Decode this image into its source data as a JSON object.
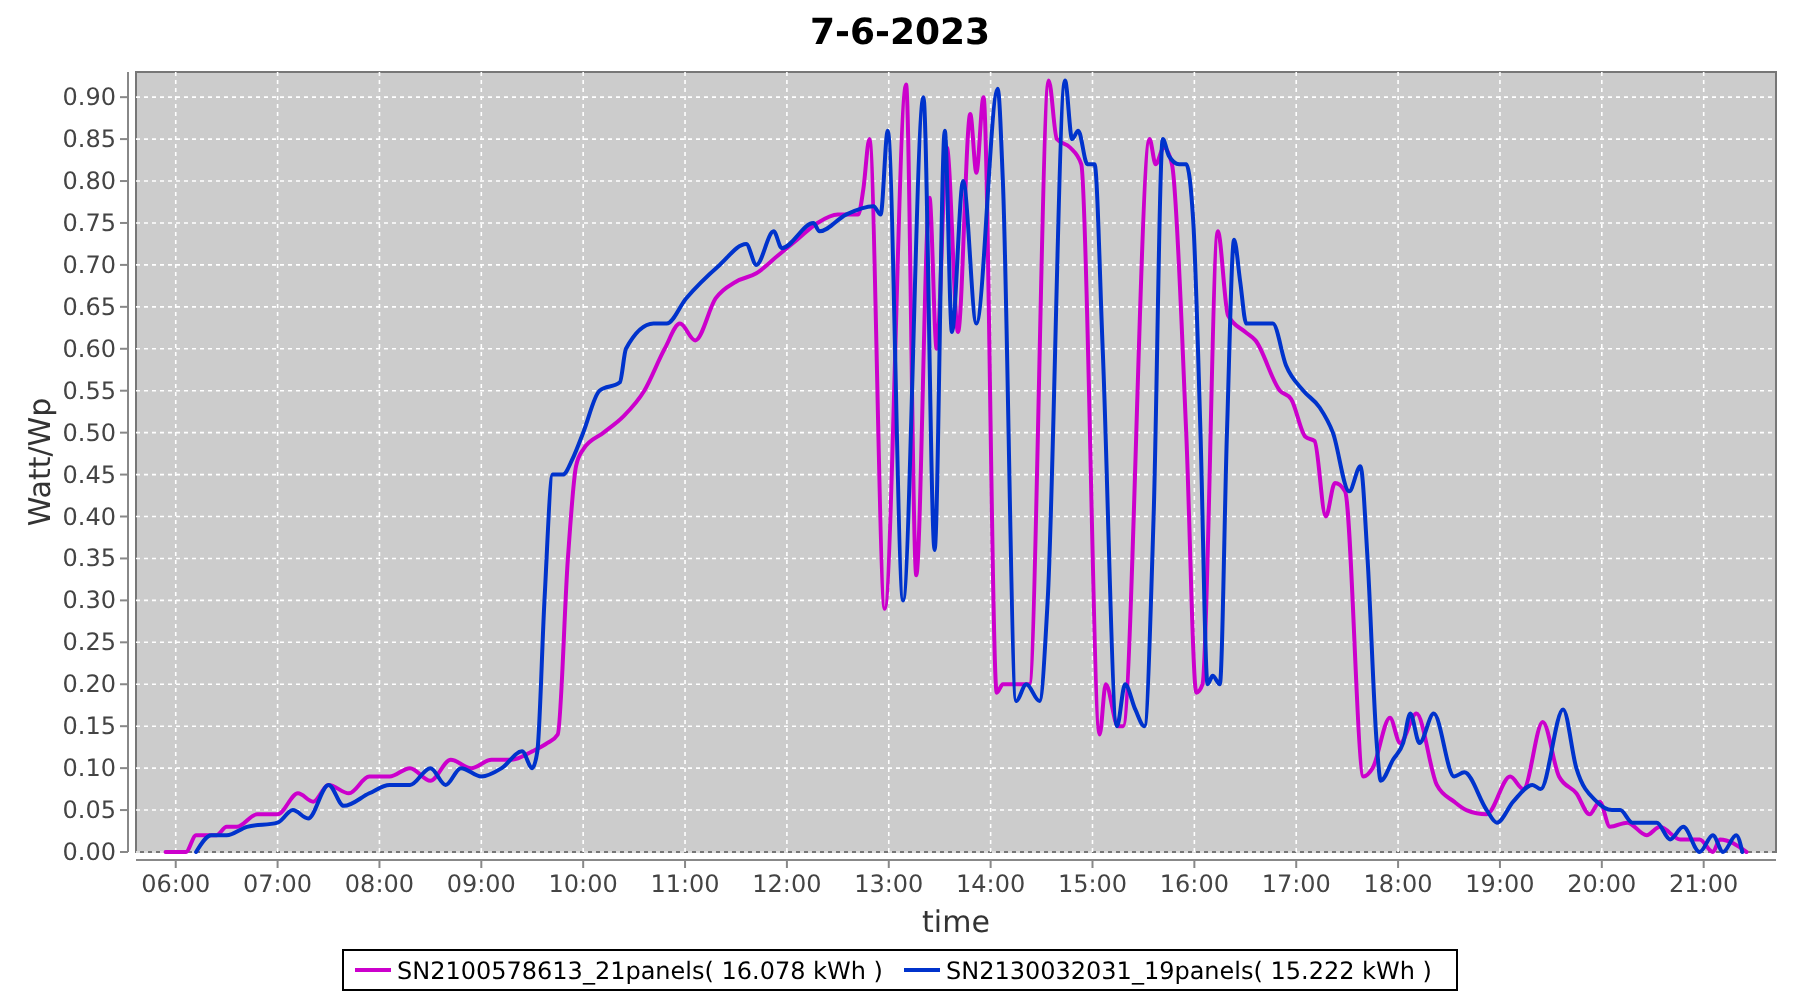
{
  "chart_data": {
    "type": "line",
    "title": "7-6-2023",
    "xlabel": "time",
    "ylabel": "Watt/Wp",
    "xlim": [
      5.61,
      21.71
    ],
    "ylim": [
      0,
      0.93
    ],
    "xticks": [
      {
        "value": 6,
        "label": "06:00"
      },
      {
        "value": 7,
        "label": "07:00"
      },
      {
        "value": 8,
        "label": "08:00"
      },
      {
        "value": 9,
        "label": "09:00"
      },
      {
        "value": 10,
        "label": "10:00"
      },
      {
        "value": 11,
        "label": "11:00"
      },
      {
        "value": 12,
        "label": "12:00"
      },
      {
        "value": 13,
        "label": "13:00"
      },
      {
        "value": 14,
        "label": "14:00"
      },
      {
        "value": 15,
        "label": "15:00"
      },
      {
        "value": 16,
        "label": "16:00"
      },
      {
        "value": 17,
        "label": "17:00"
      },
      {
        "value": 18,
        "label": "18:00"
      },
      {
        "value": 19,
        "label": "19:00"
      },
      {
        "value": 20,
        "label": "20:00"
      },
      {
        "value": 21,
        "label": "21:00"
      }
    ],
    "yticks": [
      {
        "value": 0,
        "label": "0.00"
      },
      {
        "value": 0.05,
        "label": "0.05"
      },
      {
        "value": 0.1,
        "label": "0.10"
      },
      {
        "value": 0.15,
        "label": "0.15"
      },
      {
        "value": 0.2,
        "label": "0.20"
      },
      {
        "value": 0.25,
        "label": "0.25"
      },
      {
        "value": 0.3,
        "label": "0.30"
      },
      {
        "value": 0.35,
        "label": "0.35"
      },
      {
        "value": 0.4,
        "label": "0.40"
      },
      {
        "value": 0.45,
        "label": "0.45"
      },
      {
        "value": 0.5,
        "label": "0.50"
      },
      {
        "value": 0.55,
        "label": "0.55"
      },
      {
        "value": 0.6,
        "label": "0.60"
      },
      {
        "value": 0.65,
        "label": "0.65"
      },
      {
        "value": 0.7,
        "label": "0.70"
      },
      {
        "value": 0.75,
        "label": "0.75"
      },
      {
        "value": 0.8,
        "label": "0.80"
      },
      {
        "value": 0.85,
        "label": "0.85"
      },
      {
        "value": 0.9,
        "label": "0.90"
      }
    ],
    "grid": true,
    "legend": "bottom",
    "line_style": "solid",
    "marker": "none",
    "series": [
      {
        "name": "SN2100578613_21panels( 16.078 kWh )",
        "color": "#cc00cc",
        "x": [
          5.9,
          6.1,
          6.2,
          6.4,
          6.5,
          6.6,
          6.8,
          7.0,
          7.2,
          7.35,
          7.5,
          7.7,
          7.9,
          8.1,
          8.3,
          8.5,
          8.7,
          8.9,
          9.1,
          9.3,
          9.5,
          9.65,
          9.75,
          9.85,
          9.93,
          10.0,
          10.2,
          10.4,
          10.6,
          10.8,
          10.95,
          11.1,
          11.3,
          11.5,
          11.7,
          11.9,
          12.1,
          12.3,
          12.5,
          12.7,
          12.75,
          12.81,
          12.96,
          13.17,
          13.27,
          13.4,
          13.47,
          13.57,
          13.68,
          13.8,
          13.86,
          13.93,
          14.06,
          14.12,
          14.38,
          14.57,
          14.65,
          14.78,
          14.89,
          15.07,
          15.13,
          15.25,
          15.3,
          15.56,
          15.62,
          15.7,
          15.78,
          15.92,
          16.02,
          16.08,
          16.23,
          16.33,
          16.5,
          16.6,
          16.84,
          16.95,
          17.09,
          17.18,
          17.29,
          17.38,
          17.48,
          17.66,
          17.75,
          17.92,
          18.02,
          18.18,
          18.38,
          18.55,
          18.67,
          18.87,
          19.1,
          19.23,
          19.42,
          19.58,
          19.75,
          19.88,
          19.98,
          20.08,
          20.25,
          20.44,
          20.57,
          20.77,
          20.96,
          21.09,
          21.16,
          21.42
        ],
        "values": [
          0,
          0,
          0.02,
          0.02,
          0.03,
          0.03,
          0.045,
          0.045,
          0.07,
          0.06,
          0.08,
          0.07,
          0.09,
          0.09,
          0.1,
          0.085,
          0.11,
          0.1,
          0.11,
          0.11,
          0.12,
          0.13,
          0.14,
          0.35,
          0.46,
          0.48,
          0.5,
          0.52,
          0.55,
          0.6,
          0.63,
          0.61,
          0.66,
          0.68,
          0.69,
          0.71,
          0.73,
          0.75,
          0.76,
          0.76,
          0.79,
          0.85,
          0.29,
          0.915,
          0.33,
          0.78,
          0.6,
          0.84,
          0.62,
          0.88,
          0.81,
          0.9,
          0.19,
          0.2,
          0.2,
          0.92,
          0.85,
          0.84,
          0.82,
          0.14,
          0.2,
          0.15,
          0.15,
          0.85,
          0.82,
          0.84,
          0.82,
          0.5,
          0.19,
          0.2,
          0.74,
          0.64,
          0.62,
          0.61,
          0.55,
          0.54,
          0.495,
          0.49,
          0.4,
          0.44,
          0.43,
          0.09,
          0.1,
          0.16,
          0.13,
          0.165,
          0.08,
          0.06,
          0.05,
          0.045,
          0.09,
          0.075,
          0.155,
          0.09,
          0.07,
          0.045,
          0.06,
          0.03,
          0.035,
          0.02,
          0.03,
          0.015,
          0.015,
          0,
          0.015,
          0
        ]
      },
      {
        "name": "SN2130032031_19panels( 15.222 kWh )",
        "color": "#0033cc",
        "x": [
          6.2,
          6.35,
          6.5,
          6.7,
          7.0,
          7.15,
          7.3,
          7.5,
          7.65,
          7.9,
          8.1,
          8.3,
          8.5,
          8.65,
          8.8,
          9.0,
          9.2,
          9.4,
          9.5,
          9.55,
          9.62,
          9.7,
          9.8,
          9.9,
          10.0,
          10.16,
          10.36,
          10.42,
          10.69,
          10.82,
          11.01,
          11.34,
          11.6,
          11.7,
          11.87,
          11.95,
          12.26,
          12.32,
          12.58,
          12.85,
          12.92,
          12.99,
          13.14,
          13.34,
          13.45,
          13.55,
          13.62,
          13.73,
          13.86,
          14.07,
          14.12,
          14.25,
          14.35,
          14.48,
          14.56,
          14.73,
          14.8,
          14.86,
          14.95,
          15.02,
          15.1,
          15.24,
          15.32,
          15.42,
          15.51,
          15.6,
          15.69,
          15.75,
          15.85,
          15.92,
          15.99,
          16.06,
          16.13,
          16.18,
          16.25,
          16.32,
          16.39,
          16.45,
          16.51,
          16.6,
          16.77,
          16.9,
          17.07,
          17.23,
          17.36,
          17.52,
          17.63,
          17.7,
          17.79,
          17.83,
          17.95,
          18.05,
          18.12,
          18.21,
          18.35,
          18.55,
          18.65,
          18.87,
          18.97,
          19.13,
          19.32,
          19.4,
          19.62,
          19.75,
          19.95,
          20.1,
          20.18,
          20.3,
          20.54,
          20.67,
          20.8,
          20.96,
          21.09,
          21.19,
          21.32,
          21.38
        ],
        "values": [
          0,
          0.02,
          0.02,
          0.03,
          0.035,
          0.05,
          0.04,
          0.08,
          0.055,
          0.07,
          0.08,
          0.08,
          0.1,
          0.08,
          0.1,
          0.09,
          0.1,
          0.12,
          0.1,
          0.12,
          0.3,
          0.45,
          0.45,
          0.47,
          0.5,
          0.55,
          0.56,
          0.6,
          0.63,
          0.63,
          0.66,
          0.7,
          0.725,
          0.7,
          0.74,
          0.72,
          0.75,
          0.74,
          0.76,
          0.77,
          0.76,
          0.86,
          0.3,
          0.9,
          0.36,
          0.86,
          0.62,
          0.8,
          0.63,
          0.91,
          0.8,
          0.18,
          0.2,
          0.18,
          0.3,
          0.92,
          0.85,
          0.86,
          0.82,
          0.82,
          0.6,
          0.15,
          0.2,
          0.17,
          0.15,
          0.4,
          0.85,
          0.83,
          0.82,
          0.82,
          0.75,
          0.5,
          0.2,
          0.21,
          0.2,
          0.5,
          0.73,
          0.68,
          0.63,
          0.63,
          0.63,
          0.58,
          0.55,
          0.53,
          0.5,
          0.43,
          0.46,
          0.35,
          0.13,
          0.085,
          0.11,
          0.13,
          0.165,
          0.13,
          0.165,
          0.09,
          0.095,
          0.05,
          0.035,
          0.06,
          0.08,
          0.075,
          0.17,
          0.1,
          0.06,
          0.05,
          0.05,
          0.035,
          0.035,
          0.015,
          0.03,
          0,
          0.02,
          0,
          0.02,
          0
        ]
      }
    ]
  }
}
